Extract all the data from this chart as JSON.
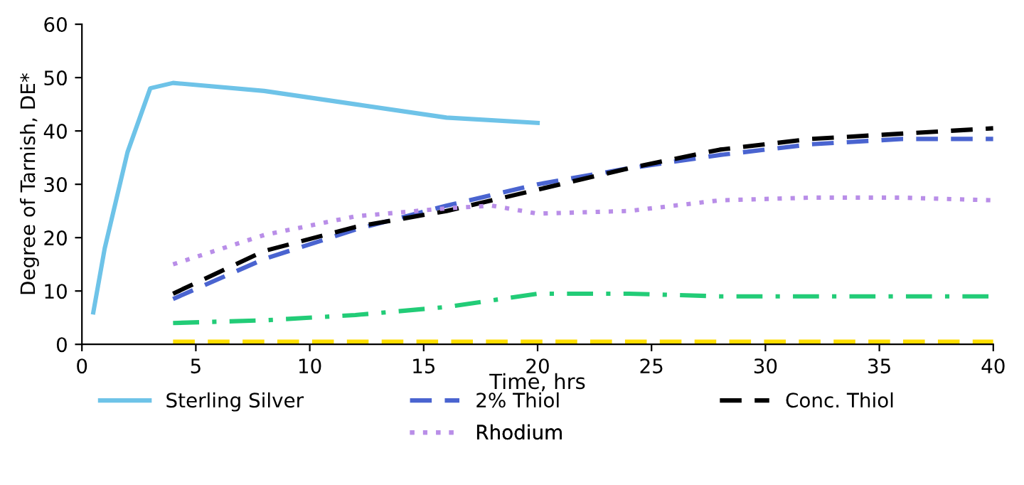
{
  "chart_data": {
    "type": "line",
    "xlabel": "Time, hrs",
    "ylabel": "Degree of Tarnish, DE*",
    "xlim": [
      0,
      40
    ],
    "xticks": [
      0,
      5,
      10,
      15,
      20,
      25,
      30,
      35,
      40
    ],
    "ylim": [
      0,
      60
    ],
    "yticks": [
      0,
      10,
      20,
      30,
      40,
      50,
      60
    ],
    "grid": false,
    "legend": "bottom",
    "marker": "none",
    "series": [
      {
        "name": "Sterling Silver",
        "color": "#6ec3e8",
        "line_style": "solid",
        "x": [
          0.5,
          1,
          2,
          3,
          4,
          8,
          12,
          16,
          20
        ],
        "values": [
          6,
          18,
          36,
          48,
          49,
          47.5,
          45,
          42.5,
          41.5
        ]
      },
      {
        "name": "2% Thiol",
        "color": "#4a64d0",
        "line_style": "dashed",
        "x": [
          4,
          8,
          12,
          16,
          20,
          24,
          28,
          32,
          36,
          40
        ],
        "values": [
          8.5,
          16,
          21.5,
          26,
          30,
          33,
          35.5,
          37.5,
          38.5,
          38.5
        ]
      },
      {
        "name": "Conc. Thiol",
        "color": "#000000",
        "line_style": "dashed",
        "x": [
          4,
          8,
          12,
          16,
          20,
          24,
          28,
          32,
          36,
          40
        ],
        "values": [
          9.5,
          17.5,
          22,
          25,
          29,
          33,
          36.5,
          38.5,
          39.5,
          40.5
        ]
      },
      {
        "color": "#22cc77",
        "line_style": "dashdot",
        "x": [
          4,
          8,
          12,
          16,
          20,
          24,
          28,
          32,
          36,
          40
        ],
        "values": [
          4,
          4.5,
          5.5,
          7,
          9.5,
          9.5,
          9,
          9,
          9,
          9
        ]
      },
      {
        "name": "Rhodium",
        "color": "#b98ee8",
        "line_style": "dotted",
        "x": [
          4,
          8,
          12,
          16,
          18,
          20,
          24,
          28,
          32,
          36,
          40
        ],
        "values": [
          15,
          20.5,
          24,
          25.5,
          26,
          24.5,
          25,
          27,
          27.5,
          27.5,
          27
        ]
      },
      {
        "color": "#ffdd00",
        "line_style": "dashed",
        "x": [
          4,
          8,
          12,
          16,
          20,
          24,
          28,
          32,
          36,
          40
        ],
        "values": [
          0.5,
          0.5,
          0.5,
          0.5,
          0.5,
          0.5,
          0.5,
          0.5,
          0.5,
          0.5
        ]
      }
    ]
  }
}
